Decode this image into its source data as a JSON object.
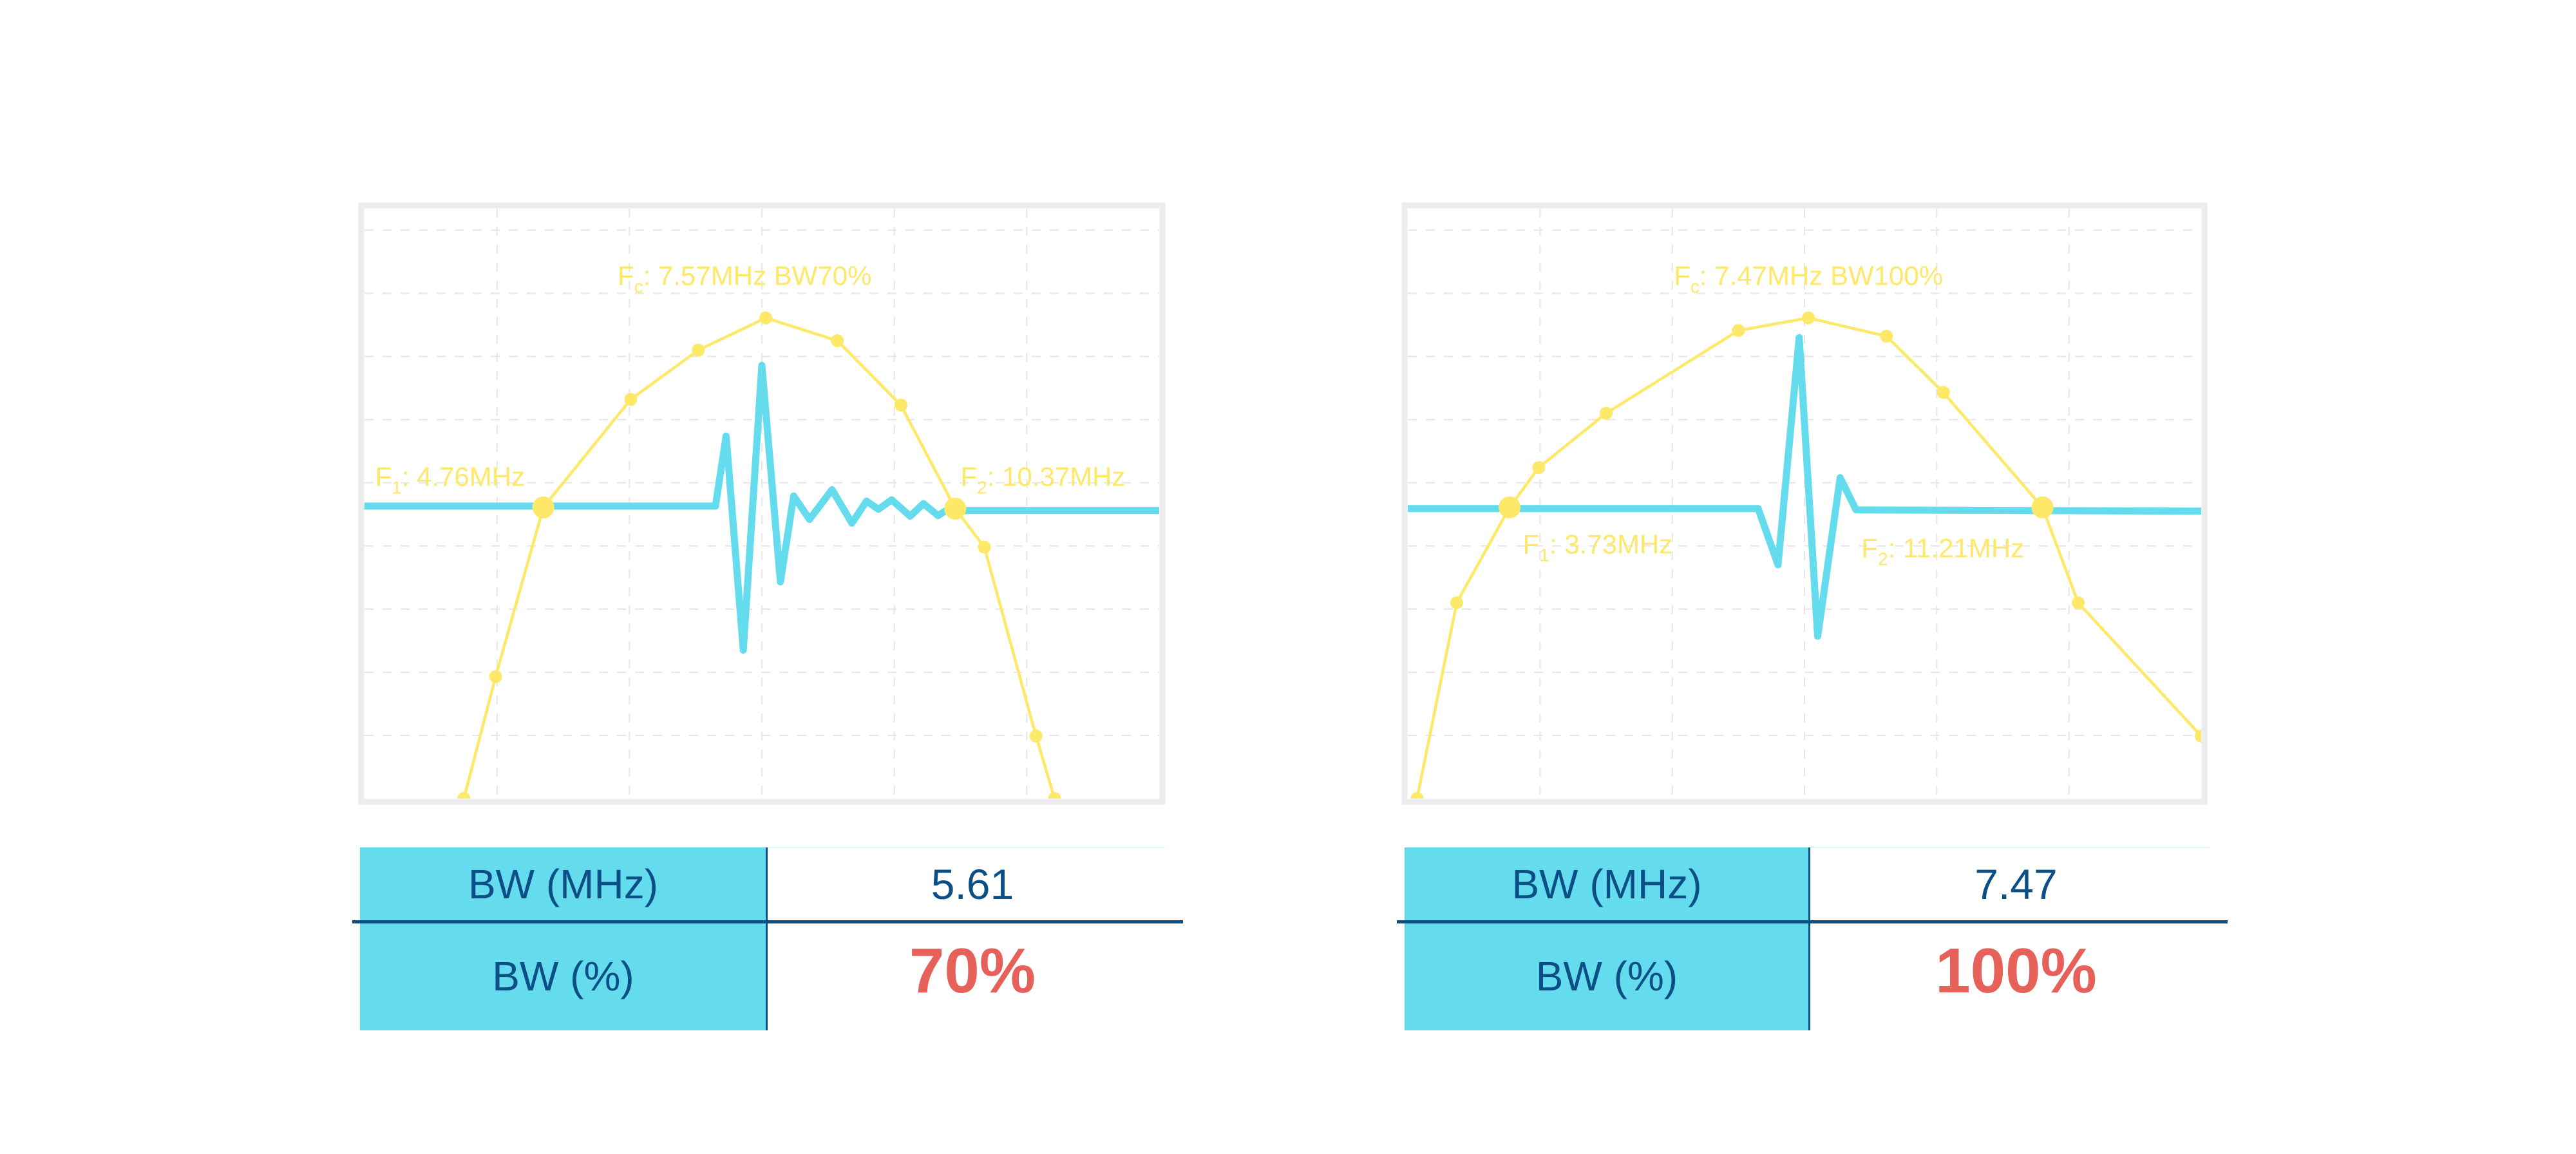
{
  "colors": {
    "spectrum": "#fde868",
    "pulse": "#64dcee",
    "frame": "#ececec",
    "grid": "#e6e6e6",
    "table_header": "#64dcee",
    "table_text": "#0b4f86",
    "percent_text": "#e5615a"
  },
  "chart_data": [
    {
      "type": "line",
      "grid": true,
      "xlim": [
        0,
        6
      ],
      "ylim": [
        0,
        9.34
      ],
      "series": [
        {
          "role": "spectrum",
          "color": "#fde868",
          "markers": true,
          "points": [
            [
              0.75,
              0
            ],
            [
              0.99,
              1.93
            ],
            [
              1.35,
              4.61
            ],
            [
              2.01,
              6.32
            ],
            [
              2.52,
              7.1
            ],
            [
              3.03,
              7.61
            ],
            [
              3.57,
              7.25
            ],
            [
              4.05,
              6.23
            ],
            [
              4.46,
              4.59
            ],
            [
              4.68,
              3.98
            ],
            [
              5.07,
              0.99
            ],
            [
              5.21,
              0
            ]
          ]
        },
        {
          "role": "pulse",
          "color": "#64dcee",
          "markers": false,
          "points": [
            [
              0,
              4.63
            ],
            [
              2.65,
              4.63
            ],
            [
              2.73,
              5.74
            ],
            [
              2.86,
              2.35
            ],
            [
              3.0,
              6.86
            ],
            [
              3.14,
              3.43
            ],
            [
              3.24,
              4.79
            ],
            [
              3.36,
              4.42
            ],
            [
              3.53,
              4.89
            ],
            [
              3.68,
              4.36
            ],
            [
              3.79,
              4.71
            ],
            [
              3.88,
              4.58
            ],
            [
              3.98,
              4.73
            ],
            [
              4.12,
              4.47
            ],
            [
              4.22,
              4.67
            ],
            [
              4.33,
              4.48
            ],
            [
              4.42,
              4.6
            ],
            [
              4.46,
              4.56
            ],
            [
              6,
              4.56
            ]
          ]
        }
      ],
      "key_points": [
        [
          1.35,
          4.61
        ],
        [
          4.46,
          4.59
        ]
      ],
      "annotations": [
        {
          "main": "F",
          "sub": "c",
          "text": ": 7.57MHz BW70%",
          "at": [
            2.87,
            8.13
          ],
          "anchor": "middle"
        },
        {
          "main": "F",
          "sub": "1",
          "text": ": 4.76MHz",
          "at": [
            0.08,
            4.95
          ],
          "anchor": "start"
        },
        {
          "main": "F",
          "sub": "2",
          "text": ": 10.37MHz",
          "at": [
            4.5,
            4.95
          ],
          "anchor": "start"
        }
      ],
      "table": [
        {
          "label": "BW (MHz)",
          "value": "5.61"
        },
        {
          "label": "BW (%)",
          "value": "70%"
        }
      ]
    },
    {
      "type": "line",
      "grid": true,
      "xlim": [
        0,
        6
      ],
      "ylim": [
        0,
        9.34
      ],
      "series": [
        {
          "role": "spectrum",
          "color": "#fde868",
          "markers": true,
          "points": [
            [
              0.07,
              0
            ],
            [
              0.37,
              3.1
            ],
            [
              0.77,
              4.61
            ],
            [
              0.99,
              5.24
            ],
            [
              1.5,
              6.1
            ],
            [
              2.5,
              7.41
            ],
            [
              3.03,
              7.61
            ],
            [
              3.62,
              7.32
            ],
            [
              4.05,
              6.43
            ],
            [
              4.8,
              4.61
            ],
            [
              5.07,
              3.1
            ],
            [
              6.0,
              0.99
            ]
          ]
        },
        {
          "role": "pulse",
          "color": "#64dcee",
          "markers": false,
          "points": [
            [
              0,
              4.59
            ],
            [
              2.65,
              4.59
            ],
            [
              2.8,
              3.7
            ],
            [
              2.96,
              7.3
            ],
            [
              3.1,
              2.57
            ],
            [
              3.27,
              5.08
            ],
            [
              3.39,
              4.57
            ],
            [
              6,
              4.55
            ]
          ]
        }
      ],
      "key_points": [
        [
          0.77,
          4.61
        ],
        [
          4.8,
          4.61
        ]
      ],
      "annotations": [
        {
          "main": "F",
          "sub": "c",
          "text": ": 7.47MHz BW100%",
          "at": [
            3.03,
            8.13
          ],
          "anchor": "middle"
        },
        {
          "main": "F",
          "sub": "1",
          "text": ": 3.73MHz",
          "at": [
            0.87,
            3.88
          ],
          "anchor": "start"
        },
        {
          "main": "F",
          "sub": "2",
          "text": ": 11.21MHz",
          "at": [
            3.43,
            3.82
          ],
          "anchor": "start"
        }
      ],
      "table": [
        {
          "label": "BW (MHz)",
          "value": "7.47"
        },
        {
          "label": "BW (%)",
          "value": "100%"
        }
      ]
    }
  ]
}
